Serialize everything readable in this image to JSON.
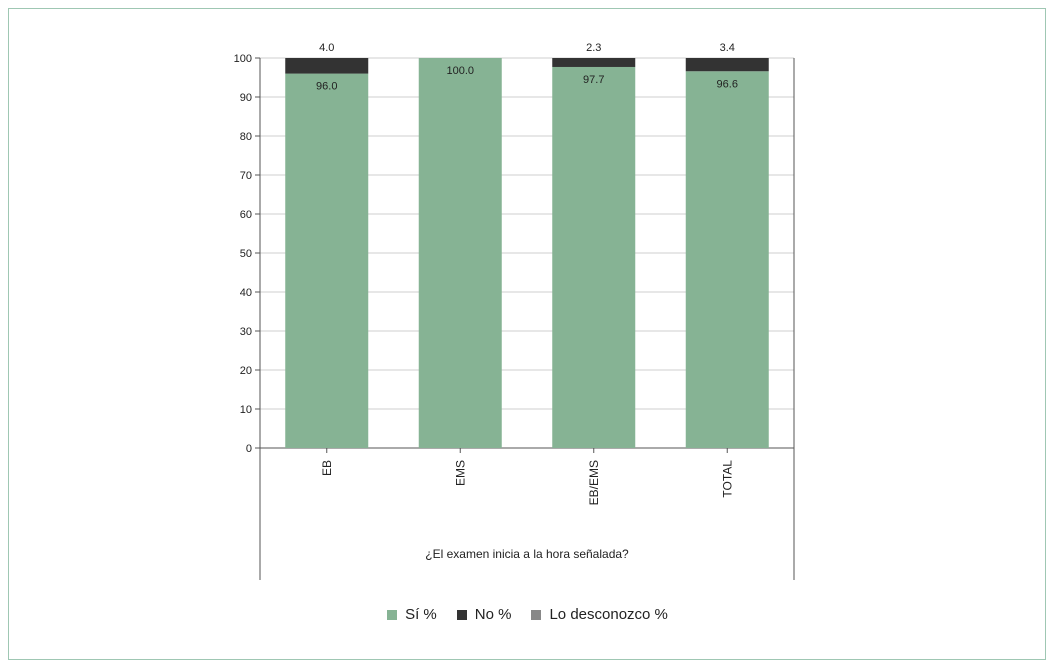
{
  "chart_data": {
    "type": "bar",
    "stacked": true,
    "categories": [
      "EB",
      "EMS",
      "EB/EMS",
      "TOTAL"
    ],
    "series": [
      {
        "name": "Sí %",
        "values": [
          96.0,
          100.0,
          97.7,
          96.6
        ],
        "labels": [
          "96.0",
          "100.0",
          "97.7",
          "96.6"
        ],
        "color": "#86b394"
      },
      {
        "name": "No %",
        "values": [
          4.0,
          0,
          2.3,
          3.4
        ],
        "labels": [
          "4.0",
          "",
          "2.3",
          "3.4"
        ],
        "color": "#333333"
      },
      {
        "name": "Lo desconozco %",
        "values": [
          0,
          0,
          0,
          0
        ],
        "labels": [
          "",
          "",
          "",
          ""
        ],
        "color": "#888888"
      }
    ],
    "yticks": [
      "0",
      "10",
      "20",
      "30",
      "40",
      "50",
      "60",
      "70",
      "80",
      "90",
      "100"
    ],
    "ylim": [
      0,
      100
    ],
    "xlabel": "¿El examen inicia a la hora señalada?",
    "ylabel": "",
    "title": "",
    "grid": true,
    "legend": "bottom-center"
  }
}
